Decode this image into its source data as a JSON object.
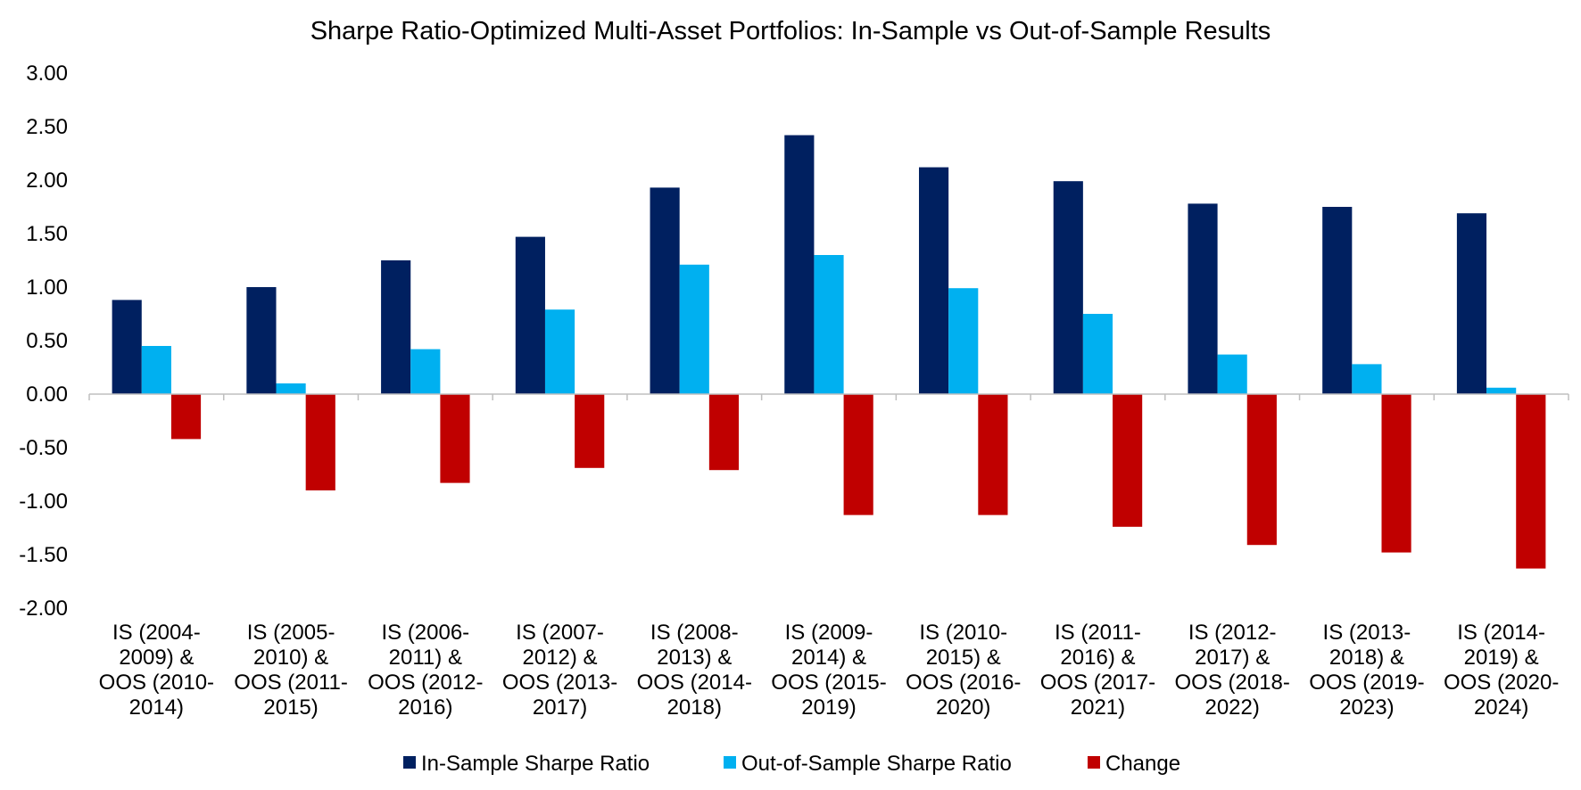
{
  "chart_data": {
    "type": "bar",
    "title": "Sharpe Ratio-Optimized Multi-Asset Portfolios: In-Sample vs Out-of-Sample Results",
    "xlabel": "",
    "ylabel": "",
    "ylim": [
      -2.0,
      3.0
    ],
    "yticks": [
      "3.00",
      "2.50",
      "2.00",
      "1.50",
      "1.00",
      "0.50",
      "0.00",
      "-0.50",
      "-1.00",
      "-1.50",
      "-2.00"
    ],
    "ytick_values": [
      3.0,
      2.5,
      2.0,
      1.5,
      1.0,
      0.5,
      0.0,
      -0.5,
      -1.0,
      -1.5,
      -2.0
    ],
    "grid": false,
    "legend_position": "bottom",
    "categories": [
      [
        "IS (2004-",
        "2009) &",
        "OOS (2010-",
        "2014)"
      ],
      [
        "IS (2005-",
        "2010) &",
        "OOS (2011-",
        "2015)"
      ],
      [
        "IS (2006-",
        "2011) &",
        "OOS (2012-",
        "2016)"
      ],
      [
        "IS (2007-",
        "2012) &",
        "OOS (2013-",
        "2017)"
      ],
      [
        "IS (2008-",
        "2013) &",
        "OOS (2014-",
        "2018)"
      ],
      [
        "IS (2009-",
        "2014) &",
        "OOS (2015-",
        "2019)"
      ],
      [
        "IS (2010-",
        "2015) &",
        "OOS (2016-",
        "2020)"
      ],
      [
        "IS (2011-",
        "2016) &",
        "OOS (2017-",
        "2021)"
      ],
      [
        "IS (2012-",
        "2017) &",
        "OOS (2018-",
        "2022)"
      ],
      [
        "IS (2013-",
        "2018) &",
        "OOS (2019-",
        "2023)"
      ],
      [
        "IS (2014-",
        "2019) &",
        "OOS (2020-",
        "2024)"
      ]
    ],
    "series": [
      {
        "name": "In-Sample Sharpe Ratio",
        "color": "#002060",
        "values": [
          0.88,
          1.0,
          1.25,
          1.47,
          1.93,
          2.42,
          2.12,
          1.99,
          1.78,
          1.75,
          1.69
        ]
      },
      {
        "name": "Out-of-Sample Sharpe Ratio",
        "color": "#00B0F0",
        "values": [
          0.45,
          0.1,
          0.42,
          0.79,
          1.21,
          1.3,
          0.99,
          0.75,
          0.37,
          0.28,
          0.06
        ]
      },
      {
        "name": "Change",
        "color": "#C00000",
        "values": [
          -0.42,
          -0.9,
          -0.83,
          -0.69,
          -0.71,
          -1.13,
          -1.13,
          -1.24,
          -1.41,
          -1.48,
          -1.63
        ]
      }
    ]
  }
}
